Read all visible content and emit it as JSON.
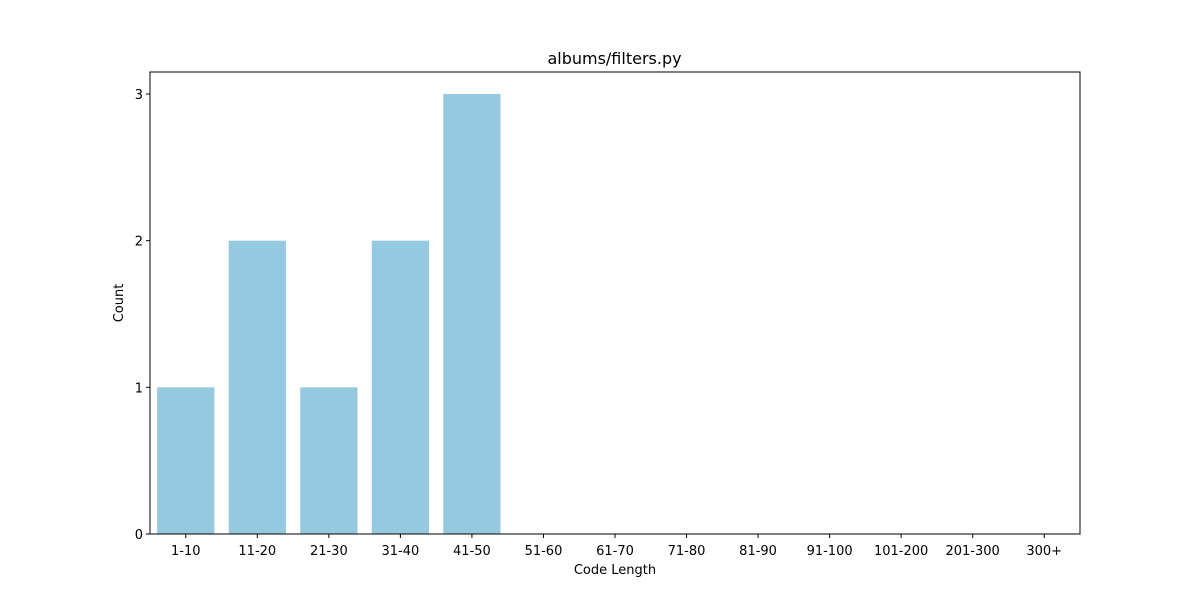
{
  "chart_data": {
    "type": "bar",
    "title": "albums/filters.py",
    "xlabel": "Code Length",
    "ylabel": "Count",
    "categories": [
      "1-10",
      "11-20",
      "21-30",
      "31-40",
      "41-50",
      "51-60",
      "61-70",
      "71-80",
      "81-90",
      "91-100",
      "101-200",
      "201-300",
      "300+"
    ],
    "values": [
      1,
      2,
      1,
      2,
      3,
      0,
      0,
      0,
      0,
      0,
      0,
      0,
      0
    ],
    "yticks": [
      0,
      1,
      2,
      3
    ],
    "ylim": [
      0,
      3.15
    ],
    "grid": false,
    "bar_color": "#95c9df"
  }
}
